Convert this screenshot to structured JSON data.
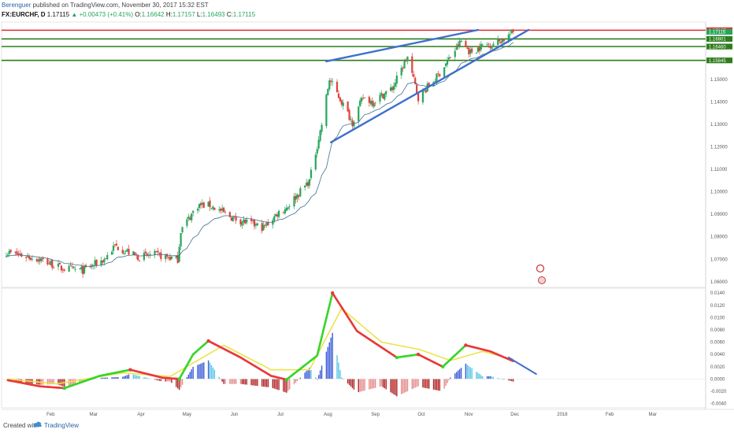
{
  "header": {
    "author": "Berenguer",
    "published_text": "published on TradingView.com, November 30, 2017 15:32 EST",
    "symbol": "FX:EURCHF, D",
    "last": "1.17115",
    "change": "▲ +0.00473 (+0.41%)",
    "o_label": "O:",
    "o": "1.16642",
    "h_label": "H:",
    "h": "1.17157",
    "l_label": "L:",
    "l": "1.16493",
    "c_label": "C:",
    "c": "1.17115"
  },
  "footer": {
    "created_with": "Created with",
    "brand": "TradingView"
  },
  "colors": {
    "up": "#26a65b",
    "down": "#e0423b",
    "hline_red": "#e03030",
    "hline_green": "#2e7d1e",
    "trend": "#3d6fcf",
    "macd_line_up": "#35d62a",
    "macd_line_down": "#e8393a",
    "signal": "#ece34a",
    "hist_pos": "#3a5ad6",
    "hist_pos_light": "#58c6e6",
    "hist_neg": "#b02222",
    "hist_neg_light": "#e58a8a"
  },
  "chart_data": [
    {
      "type": "candlestick",
      "title": "",
      "x_ticks": [
        "Feb",
        "Mar",
        "Apr",
        "May",
        "Jun",
        "Jul",
        "Aug",
        "Sep",
        "Oct",
        "Nov",
        "Dec",
        "2018",
        "Feb",
        "Mar"
      ],
      "ylim": [
        1.0575,
        1.1755
      ],
      "y_ticks": [
        "1.15000",
        "1.14000",
        "1.13000",
        "1.12000",
        "1.11000",
        "1.10000",
        "1.09000",
        "1.08000",
        "1.07000",
        "1.06000"
      ],
      "price_labels": [
        {
          "value": 1.17187,
          "text": "1.17187",
          "color": "#e03030"
        },
        {
          "value": 1.17115,
          "text": "1.17115",
          "color": "#26a65b"
        },
        {
          "value": 1.16801,
          "text": "1.16801",
          "color": "#2e7d1e"
        },
        {
          "value": 1.1646,
          "text": "1.16460",
          "color": "#2e7d1e"
        },
        {
          "value": 1.15845,
          "text": "1.15845",
          "color": "#2e7d1e"
        }
      ],
      "horizontal_lines": [
        {
          "value": 1.17187,
          "color": "#e03030"
        },
        {
          "value": 1.16801,
          "color": "#2e7d1e"
        },
        {
          "value": 1.1646,
          "color": "#2e7d1e"
        },
        {
          "value": 1.15845,
          "color": "#2e7d1e"
        }
      ],
      "trendlines": [
        {
          "x1": "2017-07-31",
          "y1": 1.158,
          "x2": "2017-11-07",
          "y2": 1.172
        },
        {
          "x1": "2017-08-03",
          "y1": 1.122,
          "x2": "2017-12-10",
          "y2": 1.172
        }
      ],
      "close_anchors": [
        [
          "2017-01-04",
          1.073
        ],
        [
          "2017-01-25",
          1.07
        ],
        [
          "2017-02-08",
          1.066
        ],
        [
          "2017-02-22",
          1.065
        ],
        [
          "2017-03-08",
          1.07
        ],
        [
          "2017-03-15",
          1.076
        ],
        [
          "2017-03-30",
          1.071
        ],
        [
          "2017-04-10",
          1.072
        ],
        [
          "2017-04-25",
          1.07
        ],
        [
          "2017-04-27",
          1.083
        ],
        [
          "2017-05-08",
          1.094
        ],
        [
          "2017-05-16",
          1.094
        ],
        [
          "2017-06-01",
          1.088
        ],
        [
          "2017-06-20",
          1.084
        ],
        [
          "2017-06-30",
          1.091
        ],
        [
          "2017-07-05",
          1.093
        ],
        [
          "2017-07-20",
          1.105
        ],
        [
          "2017-07-28",
          1.13
        ],
        [
          "2017-08-02",
          1.15
        ],
        [
          "2017-08-10",
          1.14
        ],
        [
          "2017-08-17",
          1.131
        ],
        [
          "2017-08-24",
          1.142
        ],
        [
          "2017-08-30",
          1.14
        ],
        [
          "2017-09-12",
          1.146
        ],
        [
          "2017-09-22",
          1.16
        ],
        [
          "2017-09-29",
          1.142
        ],
        [
          "2017-10-11",
          1.151
        ],
        [
          "2017-10-20",
          1.16
        ],
        [
          "2017-10-27",
          1.167
        ],
        [
          "2017-11-02",
          1.162
        ],
        [
          "2017-11-10",
          1.165
        ],
        [
          "2017-11-17",
          1.166
        ],
        [
          "2017-11-24",
          1.168
        ],
        [
          "2017-11-30",
          1.1711
        ]
      ]
    },
    {
      "type": "macd",
      "title": "",
      "ylim": [
        -0.0047,
        0.0148
      ],
      "y_ticks": [
        "0.0140",
        "0.0120",
        "0.0100",
        "0.0080",
        "0.0060",
        "0.0040",
        "0.0020",
        "0.0000",
        "-0.0020",
        "-0.0040"
      ],
      "macd_anchors": [
        [
          "2017-01-04",
          -0.0002
        ],
        [
          "2017-01-25",
          -0.0012
        ],
        [
          "2017-02-10",
          -0.0015
        ],
        [
          "2017-03-05",
          0.0005
        ],
        [
          "2017-03-25",
          0.0015
        ],
        [
          "2017-04-15",
          0.0002
        ],
        [
          "2017-04-26",
          0.0
        ],
        [
          "2017-05-05",
          0.004
        ],
        [
          "2017-05-15",
          0.0062
        ],
        [
          "2017-06-05",
          0.0035
        ],
        [
          "2017-06-25",
          0.0005
        ],
        [
          "2017-07-05",
          -0.0001
        ],
        [
          "2017-07-25",
          0.0038
        ],
        [
          "2017-08-04",
          0.014
        ],
        [
          "2017-08-20",
          0.0078
        ],
        [
          "2017-09-15",
          0.0035
        ],
        [
          "2017-09-29",
          0.004
        ],
        [
          "2017-10-15",
          0.002
        ],
        [
          "2017-10-30",
          0.0055
        ],
        [
          "2017-11-15",
          0.0045
        ],
        [
          "2017-11-30",
          0.0029
        ]
      ],
      "signal_anchors": [
        [
          "2017-01-04",
          0.0
        ],
        [
          "2017-02-05",
          -0.0008
        ],
        [
          "2017-03-20",
          0.001
        ],
        [
          "2017-04-20",
          0.0004
        ],
        [
          "2017-05-25",
          0.0055
        ],
        [
          "2017-06-25",
          0.0015
        ],
        [
          "2017-07-20",
          0.0015
        ],
        [
          "2017-08-10",
          0.0115
        ],
        [
          "2017-09-05",
          0.006
        ],
        [
          "2017-09-30",
          0.0048
        ],
        [
          "2017-10-20",
          0.003
        ],
        [
          "2017-11-10",
          0.0045
        ],
        [
          "2017-11-30",
          0.0032
        ]
      ],
      "trendline": {
        "x1": "2017-11-27",
        "y1": 0.0035,
        "x2": "2017-12-15",
        "y2": 0.0008
      }
    }
  ]
}
